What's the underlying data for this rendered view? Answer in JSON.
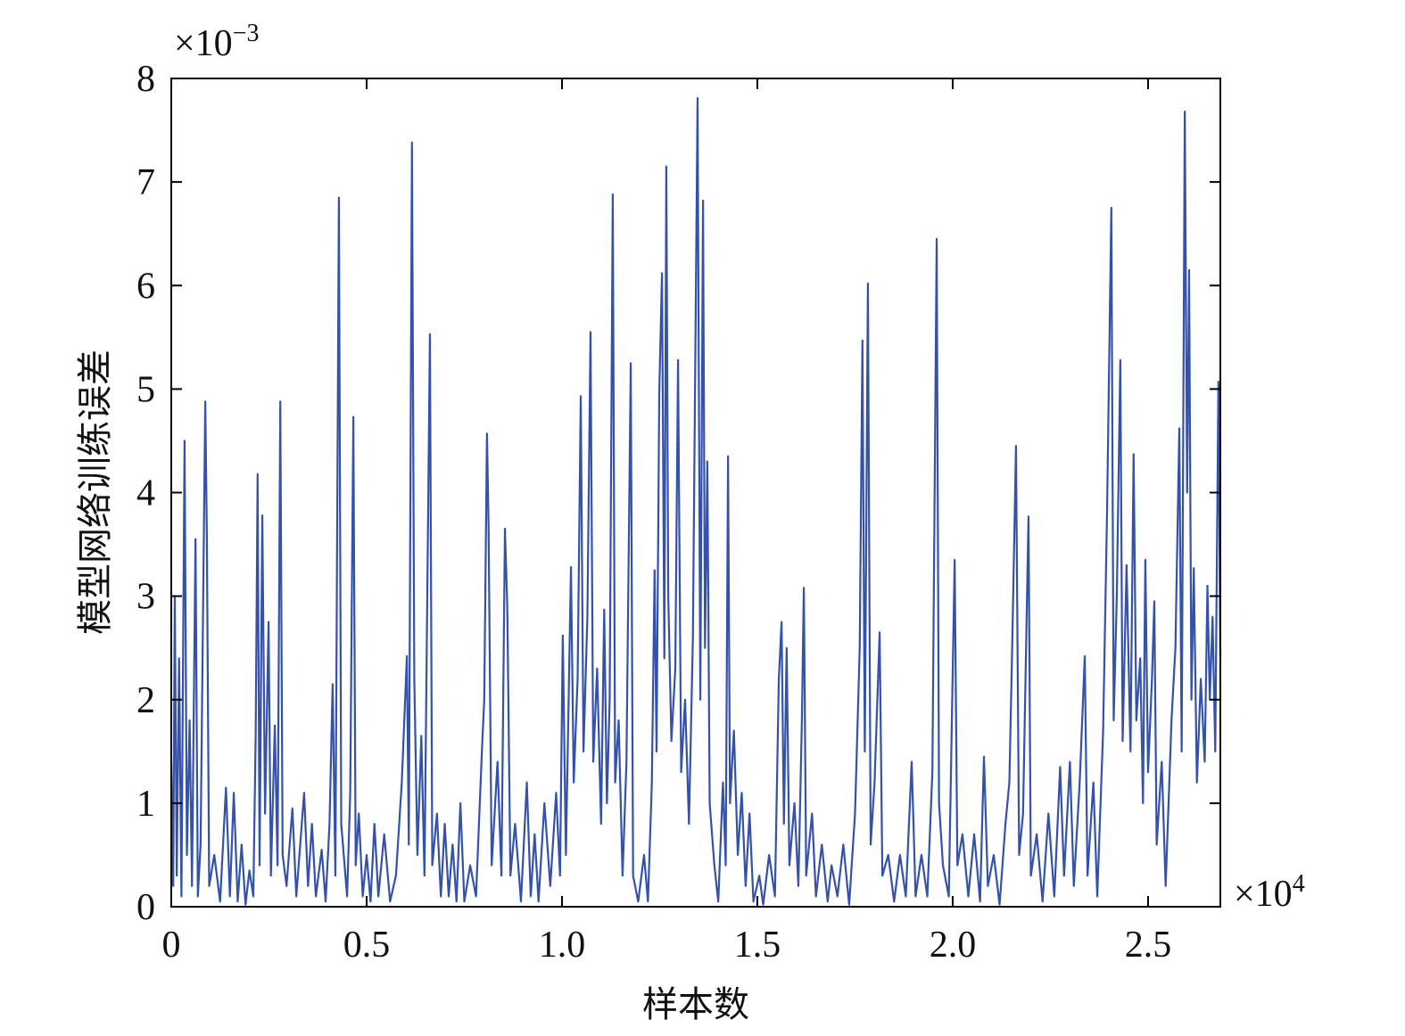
{
  "chart_data": {
    "type": "line",
    "xlabel": "样本数",
    "ylabel": "模型网络训练误差",
    "x_multiplier": {
      "base": "×10",
      "exponent": "4"
    },
    "y_multiplier": {
      "base": "×10",
      "exponent": "−3"
    },
    "color": "#3451ab",
    "xlim": [
      0,
      2.685
    ],
    "ylim": [
      0,
      8
    ],
    "xticks": [
      0,
      0.5,
      {
        "value": 1,
        "label": "1.0"
      },
      1.5,
      {
        "value": 2,
        "label": "2.0"
      },
      2.5
    ],
    "yticks": [
      0,
      1,
      2,
      3,
      4,
      5,
      6,
      7,
      8
    ],
    "grid": false,
    "x": [
      0,
      0.005,
      0.009,
      0.014,
      0.02,
      0.026,
      0.034,
      0.04,
      0.047,
      0.053,
      0.062,
      0.068,
      0.075,
      0.082,
      0.087,
      0.091,
      0.097,
      0.11,
      0.125,
      0.14,
      0.15,
      0.16,
      0.17,
      0.18,
      0.19,
      0.2,
      0.21,
      0.216,
      0.221,
      0.226,
      0.233,
      0.24,
      0.249,
      0.255,
      0.265,
      0.272,
      0.279,
      0.285,
      0.295,
      0.31,
      0.32,
      0.34,
      0.35,
      0.36,
      0.37,
      0.385,
      0.395,
      0.405,
      0.413,
      0.42,
      0.429,
      0.435,
      0.45,
      0.458,
      0.466,
      0.472,
      0.48,
      0.49,
      0.5,
      0.51,
      0.52,
      0.53,
      0.545,
      0.56,
      0.575,
      0.59,
      0.603,
      0.608,
      0.616,
      0.622,
      0.63,
      0.64,
      0.648,
      0.662,
      0.668,
      0.68,
      0.69,
      0.7,
      0.71,
      0.72,
      0.73,
      0.74,
      0.75,
      0.765,
      0.78,
      0.795,
      0.801,
      0.808,
      0.812,
      0.82,
      0.835,
      0.845,
      0.854,
      0.86,
      0.868,
      0.88,
      0.895,
      0.91,
      0.92,
      0.93,
      0.94,
      0.955,
      0.97,
      0.985,
      0.995,
      1.002,
      1.01,
      1.023,
      1.03,
      1.04,
      1.048,
      1.055,
      1.065,
      1.073,
      1.08,
      1.09,
      1.1,
      1.108,
      1.115,
      1.122,
      1.13,
      1.136,
      1.145,
      1.155,
      1.165,
      1.176,
      1.182,
      1.195,
      1.21,
      1.22,
      1.23,
      1.237,
      1.242,
      1.249,
      1.256,
      1.262,
      1.267,
      1.272,
      1.28,
      1.29,
      1.297,
      1.305,
      1.315,
      1.325,
      1.335,
      1.347,
      1.354,
      1.361,
      1.366,
      1.372,
      1.378,
      1.39,
      1.4,
      1.412,
      1.419,
      1.425,
      1.43,
      1.44,
      1.45,
      1.46,
      1.47,
      1.48,
      1.49,
      1.505,
      1.515,
      1.53,
      1.545,
      1.555,
      1.562,
      1.568,
      1.575,
      1.582,
      1.595,
      1.605,
      1.614,
      1.619,
      1.625,
      1.64,
      1.65,
      1.665,
      1.68,
      1.69,
      1.705,
      1.72,
      1.735,
      1.75,
      1.762,
      1.769,
      1.775,
      1.783,
      1.79,
      1.8,
      1.813,
      1.82,
      1.835,
      1.85,
      1.865,
      1.88,
      1.895,
      1.905,
      1.92,
      1.935,
      1.948,
      1.959,
      1.965,
      1.975,
      1.99,
      2.005,
      2.012,
      2.025,
      2.04,
      2.055,
      2.07,
      2.08,
      2.09,
      2.105,
      2.12,
      2.135,
      2.145,
      2.153,
      2.162,
      2.17,
      2.18,
      2.194,
      2.2,
      2.215,
      2.23,
      2.245,
      2.26,
      2.275,
      2.285,
      2.3,
      2.31,
      2.325,
      2.338,
      2.345,
      2.36,
      2.37,
      2.385,
      2.395,
      2.406,
      2.412,
      2.42,
      2.429,
      2.435,
      2.445,
      2.455,
      2.463,
      2.47,
      2.48,
      2.487,
      2.493,
      2.5,
      2.51,
      2.516,
      2.522,
      2.535,
      2.545,
      2.56,
      2.57,
      2.58,
      2.586,
      2.594,
      2.6,
      2.605,
      2.611,
      2.617,
      2.625,
      2.635,
      2.645,
      2.652,
      2.658,
      2.665,
      2.672,
      2.68,
      2.685
    ],
    "values": [
      1.4,
      0.2,
      3.0,
      0.3,
      2.4,
      0.1,
      4.5,
      0.5,
      1.8,
      0.2,
      3.55,
      0.1,
      0.6,
      3.1,
      4.88,
      3.6,
      0.2,
      0.5,
      0.05,
      1.15,
      0.1,
      1.1,
      0.05,
      0.6,
      0.02,
      0.35,
      0.1,
      1.65,
      4.18,
      0.4,
      3.78,
      0.9,
      2.75,
      0.3,
      1.75,
      0.4,
      4.88,
      0.5,
      0.2,
      0.95,
      0.1,
      1.1,
      0.2,
      0.8,
      0.1,
      0.55,
      0.05,
      0.8,
      2.15,
      0.3,
      6.85,
      0.8,
      0.1,
      1.1,
      4.73,
      0.4,
      0.9,
      0.1,
      0.5,
      0.05,
      0.8,
      0.1,
      0.7,
      0.05,
      0.3,
      1.2,
      2.42,
      0.6,
      7.38,
      2.2,
      0.5,
      1.65,
      0.3,
      5.53,
      0.4,
      0.9,
      0.1,
      0.8,
      0.1,
      0.6,
      0.05,
      1.0,
      0.05,
      0.4,
      0.1,
      1.5,
      2.0,
      4.57,
      3.7,
      0.4,
      1.4,
      0.3,
      3.65,
      2.9,
      0.3,
      0.8,
      0.05,
      1.2,
      0.1,
      0.7,
      0.05,
      1.0,
      0.2,
      1.1,
      0.3,
      2.62,
      0.5,
      3.28,
      1.2,
      2.2,
      4.93,
      1.5,
      2.8,
      5.55,
      1.4,
      2.3,
      0.8,
      2.87,
      1.0,
      2.0,
      6.88,
      1.2,
      1.8,
      0.3,
      1.4,
      5.25,
      0.3,
      0.05,
      0.5,
      0.05,
      1.2,
      3.25,
      1.5,
      4.97,
      6.12,
      2.4,
      7.15,
      3.0,
      1.6,
      2.3,
      5.28,
      1.3,
      2.0,
      0.8,
      2.6,
      7.81,
      2.0,
      6.82,
      2.5,
      4.3,
      1.0,
      0.4,
      0.05,
      1.2,
      0.4,
      4.35,
      1.0,
      1.7,
      0.5,
      1.1,
      0.2,
      0.9,
      0.05,
      0.3,
      0.02,
      0.5,
      0.1,
      2.2,
      2.75,
      0.8,
      2.5,
      0.4,
      1.0,
      0.2,
      1.8,
      3.08,
      0.3,
      0.9,
      0.1,
      0.6,
      0.05,
      0.4,
      0.1,
      0.6,
      0.02,
      0.9,
      2.5,
      5.47,
      1.5,
      6.02,
      0.6,
      1.2,
      2.65,
      0.3,
      0.5,
      0.05,
      0.5,
      0.1,
      1.4,
      0.1,
      0.5,
      0.1,
      1.3,
      6.45,
      1.0,
      0.4,
      0.1,
      3.35,
      0.4,
      0.7,
      0.1,
      0.7,
      0.05,
      1.45,
      0.2,
      0.5,
      0.02,
      0.8,
      1.2,
      2.65,
      4.45,
      0.5,
      0.9,
      3.77,
      0.3,
      0.7,
      0.05,
      0.9,
      0.1,
      1.35,
      0.3,
      1.4,
      0.2,
      1.2,
      2.42,
      0.3,
      1.2,
      0.1,
      1.7,
      3.8,
      6.75,
      1.8,
      3.0,
      5.28,
      1.6,
      3.3,
      1.5,
      4.37,
      1.8,
      2.4,
      1.0,
      3.35,
      1.3,
      2.2,
      2.95,
      0.6,
      1.4,
      0.2,
      1.8,
      2.5,
      4.62,
      1.5,
      7.68,
      4.0,
      6.15,
      2.0,
      3.27,
      1.2,
      2.2,
      1.4,
      3.1,
      2.0,
      2.8,
      1.5,
      5.07,
      2.4
    ]
  }
}
